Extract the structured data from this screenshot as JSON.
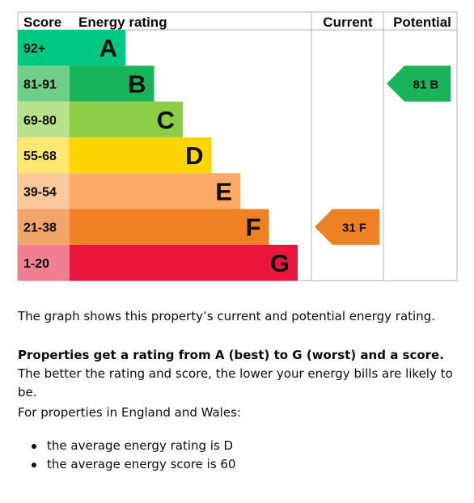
{
  "chart_data": {
    "type": "bar",
    "headers": {
      "score": "Score",
      "rating": "Energy rating",
      "current": "Current",
      "potential": "Potential"
    },
    "bands": [
      {
        "band": "A",
        "range": "92+",
        "min": 92,
        "max": 100,
        "color": "#008054",
        "label_color": "#00c781"
      },
      {
        "band": "B",
        "range": "81-91",
        "min": 81,
        "max": 91,
        "color": "#19b459",
        "label_color": "#6fce8a"
      },
      {
        "band": "C",
        "range": "69-80",
        "min": 69,
        "max": 80,
        "color": "#8dce46",
        "label_color": "#b8e18c"
      },
      {
        "band": "D",
        "range": "55-68",
        "min": 55,
        "max": 68,
        "color": "#ffd500",
        "label_color": "#ffe871"
      },
      {
        "band": "E",
        "range": "39-54",
        "min": 39,
        "max": 54,
        "color": "#fcaa65",
        "label_color": "#fbc89b"
      },
      {
        "band": "F",
        "range": "21-38",
        "min": 21,
        "max": 38,
        "color": "#ef8023",
        "label_color": "#f2a56b"
      },
      {
        "band": "G",
        "range": "1-20",
        "min": 1,
        "max": 20,
        "color": "#e9153b",
        "label_color": "#f17e91"
      }
    ],
    "band_colors_actual": [
      "#00c781",
      "#19b459",
      "#8dce46",
      "#ffd500",
      "#fcaa65",
      "#ef8023",
      "#e9153b"
    ],
    "current": {
      "score": 31,
      "band": "F",
      "label": "31 F",
      "color": "#ef8023"
    },
    "potential": {
      "score": 81,
      "band": "B",
      "label": "81 B",
      "color": "#19b459"
    }
  },
  "text": {
    "intro": "The graph shows this property’s current and potential energy rating.",
    "rating_bold": "Properties get a rating from A (best) to G (worst) and a score.",
    "rating_rest": " The better the rating and score, the lower your energy bills are likely to be.",
    "region": "For properties in England and Wales:",
    "bullets": [
      "the average energy rating is D",
      "the average energy score is 60"
    ]
  }
}
